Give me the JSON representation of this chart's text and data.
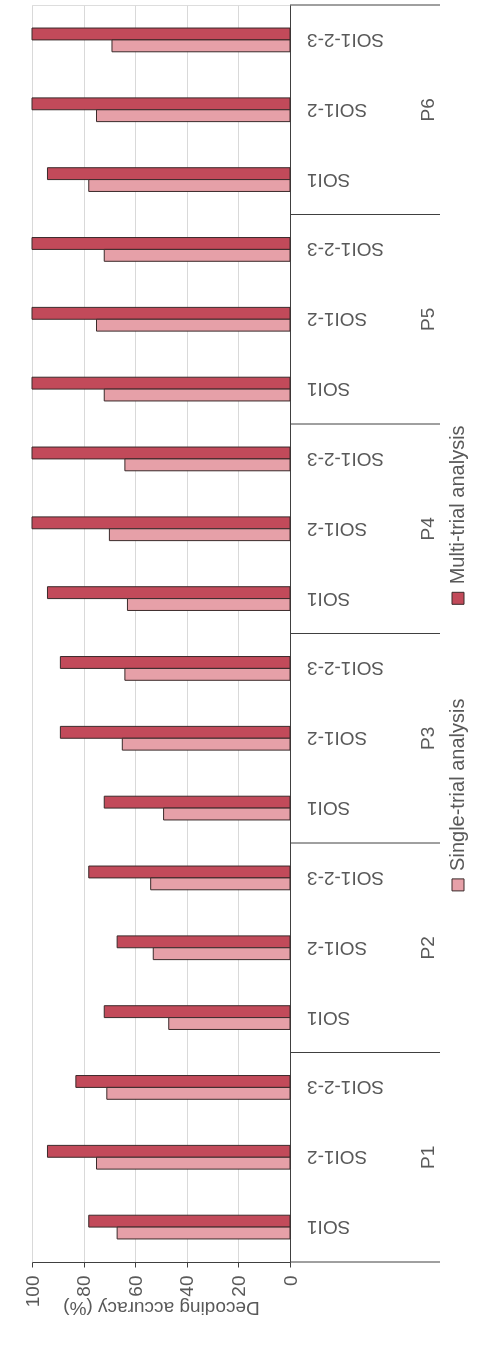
{
  "chart_data": {
    "type": "bar",
    "orientation": "horizontal",
    "xlabel": "Decoding accuracy (%)",
    "categories": [
      "SOI1-2-3",
      "SOI1-2",
      "SOI1",
      "SOI1-2-3",
      "SOI1-2",
      "SOI1",
      "SOI1-2-3",
      "SOI1-2",
      "SOI1",
      "SOI1-2-3",
      "SOI1-2",
      "SOI1",
      "SOI1-2-3",
      "SOI1-2",
      "SOI1",
      "SOI1-2-3",
      "SOI1-2",
      "SOI1"
    ],
    "annotations": [
      "P6",
      "P5",
      "P4",
      "P3",
      "P2",
      "P1"
    ],
    "series": [
      {
        "name": "Multi-trial analysis",
        "color": "#c24a5a",
        "values": [
          100,
          100,
          94,
          100,
          100,
          100,
          100,
          100,
          94,
          89,
          89,
          72,
          78,
          67,
          72,
          83,
          94,
          78
        ]
      },
      {
        "name": "Single-trial analysis",
        "color": "#e6a0a8",
        "values": [
          69,
          75,
          78,
          72,
          75,
          72,
          64,
          70,
          63,
          64,
          65,
          49,
          54,
          53,
          47,
          71,
          75,
          67
        ]
      }
    ],
    "xlim": [
      100,
      0
    ],
    "xticks": [
      100,
      80,
      60,
      40,
      20,
      0
    ],
    "grid": "x",
    "legend": "right"
  }
}
